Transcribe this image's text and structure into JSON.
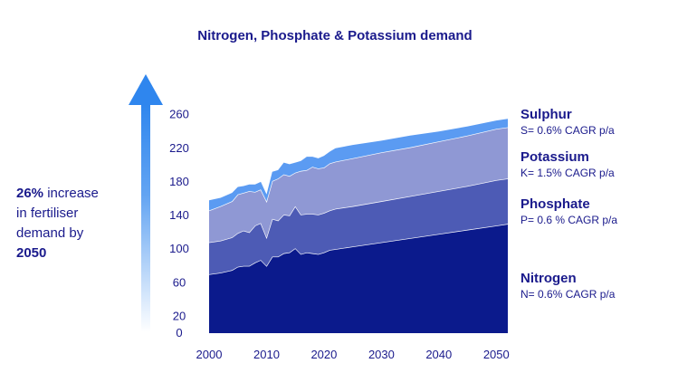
{
  "chart_data": {
    "type": "area",
    "stacked": true,
    "title": "Nitrogen, Phosphate & Potassium demand",
    "xlabel": "",
    "ylabel": "",
    "xlim": [
      2000,
      2052
    ],
    "ylim": [
      0,
      265
    ],
    "x_ticks": [
      2000,
      2010,
      2020,
      2030,
      2040,
      2050
    ],
    "y_ticks": [
      0,
      20,
      60,
      100,
      140,
      180,
      220,
      260
    ],
    "x": [
      2000,
      2002,
      2004,
      2005,
      2006,
      2007,
      2008,
      2009,
      2010,
      2011,
      2012,
      2013,
      2014,
      2015,
      2016,
      2017,
      2018,
      2019,
      2020,
      2021,
      2022,
      2025,
      2030,
      2035,
      2040,
      2045,
      2050,
      2052
    ],
    "series": [
      {
        "name": "Nitrogen",
        "note": "N= 0.6% CAGR p/a",
        "color": "#0b1a8c",
        "values": [
          70,
          72,
          75,
          79,
          80,
          80,
          84,
          87,
          80,
          91,
          91,
          95,
          96,
          101,
          94,
          96,
          95,
          94,
          96,
          99,
          100,
          103,
          108,
          113,
          118,
          123,
          128,
          130
        ]
      },
      {
        "name": "Phosphate",
        "note": "P= 0.6 % CAGR p/a",
        "color": "#4d5bb5",
        "values": [
          38,
          38,
          39,
          40,
          42,
          40,
          44,
          44,
          34,
          45,
          43,
          46,
          44,
          50,
          47,
          46,
          47,
          47,
          47,
          47,
          48,
          48,
          49,
          50,
          51,
          52,
          54,
          54
        ]
      },
      {
        "name": "Potassium",
        "note": "K= 1.5% CAGR p/a",
        "color": "#8f98d4",
        "values": [
          38,
          41,
          43,
          46,
          45,
          49,
          40,
          40,
          43,
          45,
          50,
          48,
          47,
          40,
          52,
          52,
          56,
          55,
          54,
          56,
          56,
          57,
          58,
          58,
          59,
          60,
          61,
          61
        ]
      },
      {
        "name": "Sulphur",
        "note": "S= 0.6% CAGR p/a",
        "color": "#5b9bf2",
        "values": [
          12,
          10,
          10,
          9,
          8,
          8,
          9,
          9,
          8,
          11,
          10,
          14,
          14,
          12,
          12,
          16,
          12,
          12,
          14,
          14,
          16,
          16,
          14,
          14,
          12,
          11,
          10,
          10
        ]
      }
    ]
  },
  "annotation": {
    "highlight": "26%",
    "line1_rest": " increase",
    "line2": "in fertiliser",
    "line3": "demand by",
    "line4": "2050",
    "arrow_color": "#2f86ee"
  }
}
